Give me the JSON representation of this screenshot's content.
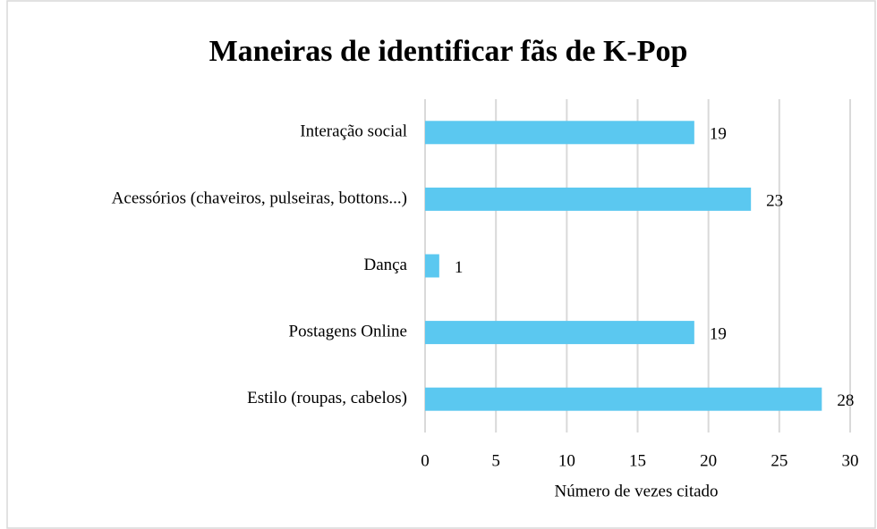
{
  "chart_data": {
    "type": "barh",
    "title": "Maneiras de identificar fãs de K-Pop",
    "xlabel": "Número de vezes citado",
    "categories": [
      "Interação social",
      "Acessórios (chaveiros, pulseiras, bottons...)",
      "Dança",
      "Postagens Online",
      "Estilo (roupas, cabelos)"
    ],
    "values": [
      19,
      23,
      1,
      19,
      28
    ],
    "color": "#5bc8f0",
    "xlim": [
      0,
      30
    ],
    "xticks": [
      0,
      5,
      10,
      15,
      20,
      25,
      30
    ],
    "grid": true
  }
}
